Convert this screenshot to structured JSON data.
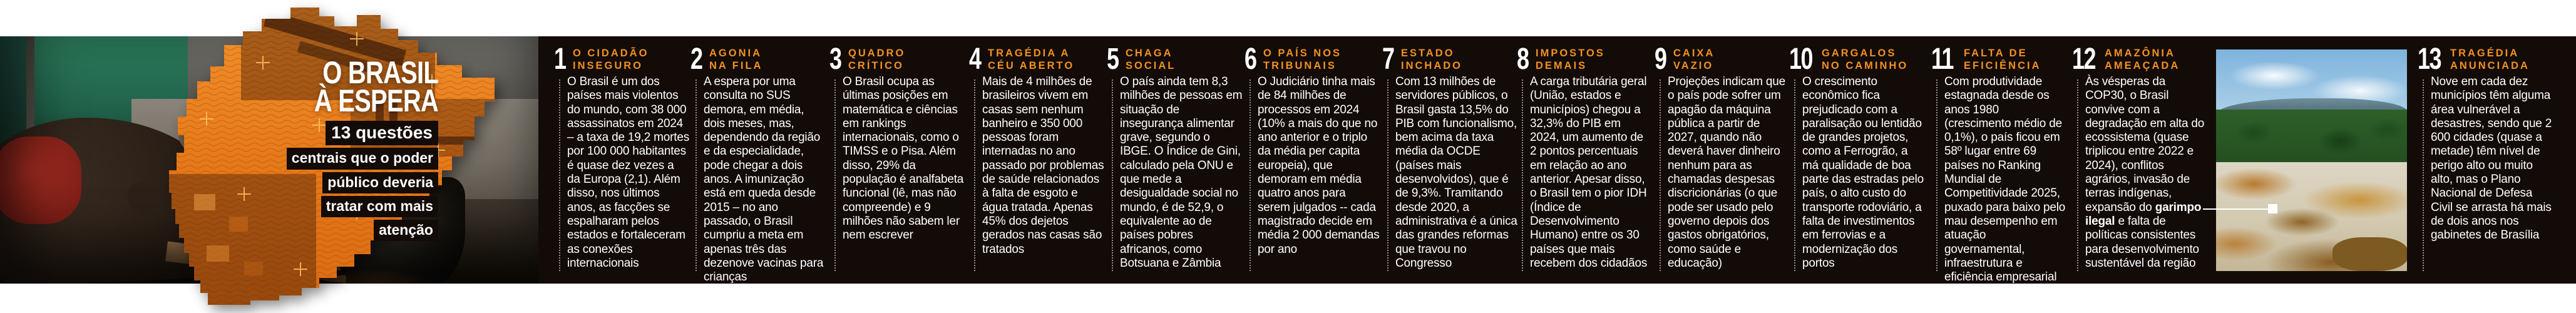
{
  "headline": {
    "line1": "O BRASIL",
    "line2": "À ESPERA",
    "kicker_bold": "13 questões",
    "kicker_lines": [
      "centrais que o poder",
      "público deveria",
      "tratar com mais",
      "atenção"
    ]
  },
  "images": {
    "left_photo": "favela-cooking-scene-photo",
    "map_graphic": "brazil-map-orange-collage",
    "right_photo": "amazon-illegal-mining-photo"
  },
  "colors": {
    "accent_orange": "#F29120",
    "map_orange": "#E87A1E",
    "band_black": "#130B08",
    "text_white": "#FFFFFF",
    "crosshair_gold": "#FFC063"
  },
  "sections": [
    {
      "number": "1",
      "title_line1": "O CIDADÃO",
      "title_line2": "INSEGURO",
      "body": "O Brasil é um dos países mais violentos do mundo, com 38 000 assassinatos em 2024 – a taxa de 19,2 mortes por 100 000 habitantes é quase dez vezes a da Europa (2,1). Além disso, nos últimos anos, as facções se espalharam pelos estados e fortaleceram as conexões internacionais"
    },
    {
      "number": "2",
      "title_line1": "AGONIA",
      "title_line2": "NA FILA",
      "body": "A espera por uma consulta no SUS demora, em média, dois meses, mas, dependendo da região e da especialidade, pode chegar a dois anos. A imunização está em queda desde 2015 – no ano passado, o Brasil cumpriu a meta em apenas três das dezenove vacinas para crianças"
    },
    {
      "number": "3",
      "title_line1": "QUADRO",
      "title_line2": "CRÍTICO",
      "body": "O Brasil ocupa as últimas posições em matemática e ciências em rankings internacionais, como o TIMSS e o Pisa. Além disso, 29% da população é analfabeta funcional (lê, mas não compreende) e 9 milhões não sabem ler nem escrever"
    },
    {
      "number": "4",
      "title_line1": "TRAGÉDIA A",
      "title_line2": "CÉU ABERTO",
      "body": "Mais de 4 milhões de brasileiros vivem em casas sem nenhum banheiro e 350 000 pessoas foram internadas no ano passado por problemas de saúde relacionados à falta de esgoto e água tratada. Apenas 45% dos dejetos gerados nas casas são tratados"
    },
    {
      "number": "5",
      "title_line1": "CHAGA",
      "title_line2": "SOCIAL",
      "body": "O país ainda tem 8,3 milhões de pessoas em situação de insegurança alimentar grave, segundo o IBGE. O Índice de Gini, calculado pela ONU e que mede a desigualdade social no mundo, é de 52,9, o equivalente ao de países pobres africanos, como Botsuana e Zâmbia"
    },
    {
      "number": "6",
      "title_line1": "O PAÍS NOS",
      "title_line2": "TRIBUNAIS",
      "body": "O Judiciário tinha mais de 84 milhões de processos em 2024 (10% a mais do que no ano anterior e o triplo da média per capita europeia), que demoram em média quatro anos para serem julgados -- cada magistrado decide em média 2 000 demandas por ano"
    },
    {
      "number": "7",
      "title_line1": "ESTADO",
      "title_line2": "INCHADO",
      "body": "Com 13 milhões de servidores públicos, o Brasil gasta 13,5% do PIB com funcionalismo, bem acima da taxa média da OCDE (países mais desenvolvidos), que é de 9,3%. Tramitando desde 2020, a administrativa é a única das grandes reformas que travou no Congresso"
    },
    {
      "number": "8",
      "title_line1": "IMPOSTOS",
      "title_line2": "DEMAIS",
      "body": "A carga tributária geral (União, estados e municípios) chegou a 32,3% do PIB em 2024, um aumento de 2 pontos percentuais em relação ao ano anterior. Apesar disso, o Brasil tem o pior IDH (Índice de Desenvolvimento Humano) entre os 30 países que mais recebem dos cidadãos"
    },
    {
      "number": "9",
      "title_line1": "CAIXA",
      "title_line2": "VAZIO",
      "body": "Projeções indicam que o país pode sofrer um apagão da máquina pública a partir de 2027, quando não deverá haver dinheiro nenhum para as chamadas despesas discricionárias (o que pode ser usado pelo governo depois dos gastos obrigatórios, como saúde e educação)"
    },
    {
      "number": "10",
      "title_line1": "GARGALOS",
      "title_line2": "NO CAMINHO",
      "body": "O crescimento econômico fica prejudicado com a paralisação ou lentidão de grandes projetos, como a Ferrogrão, a má qualidade de boa parte das estradas pelo país, o alto custo do transporte rodoviário, a falta de investimentos em ferrovias e a modernização dos portos"
    },
    {
      "number": "11",
      "title_line1": "FALTA DE",
      "title_line2": "EFICIÊNCIA",
      "body": "Com produtividade estagnada desde os anos 1980 (crescimento médio de 0,1%), o país ficou em 58º lugar entre 69 países no Ranking Mundial de Competitividade 2025, puxado para baixo pelo mau desempenho em atuação governamental, infraestrutura e eficiência empresarial"
    },
    {
      "number": "12",
      "title_line1": "AMAZÔNIA",
      "title_line2": "AMEAÇADA",
      "body": "Às vésperas da COP30, o Brasil convive com a degradação em alta do ecossistema (quase triplicou entre 2022 e 2024), conflitos agrários, invasão de terras indígenas, expansão do garimpo ilegal e falta de políticas consistentes para desenvolvimento sustentável da região",
      "bold_phrase": "garimpo ilegal"
    },
    {
      "number": "13",
      "title_line1": "TRAGÉDIA",
      "title_line2": "ANUNCIADA",
      "body": "Nove em cada dez municípios têm alguma área vulnerável a desastres, sendo que 2 600 cidades (quase a metade) têm nível de perigo alto ou muito alto, mas o Plano Nacional de Defesa Civil se arrasta há mais de dois anos nos gabinetes de Brasília"
    }
  ]
}
